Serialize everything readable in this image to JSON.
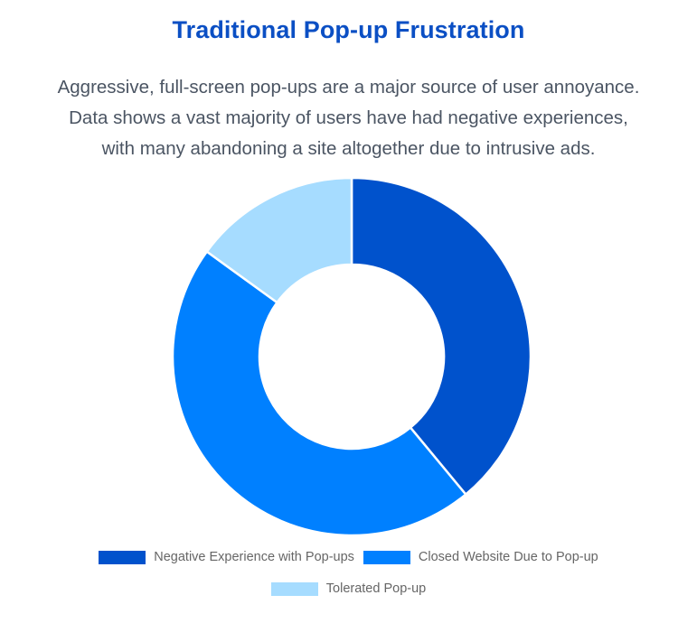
{
  "title": "Traditional Pop-up Frustration",
  "subtitle_lines": [
    "Aggressive, full-screen pop-ups are a major source of user annoyance.",
    "Data shows a vast majority of users have had negative experiences,",
    "with many abandoning a site altogether due to intrusive ads."
  ],
  "chart_data": {
    "type": "pie",
    "variant": "doughnut",
    "title": "",
    "labels": [
      "Negative Experience with Pop-ups",
      "Closed Website Due to Pop-up",
      "Tolerated Pop-up"
    ],
    "values": [
      39,
      46,
      15
    ],
    "colors": [
      "#0052CC",
      "#0080FF",
      "#A6DCFF"
    ],
    "legend_position": "bottom"
  }
}
